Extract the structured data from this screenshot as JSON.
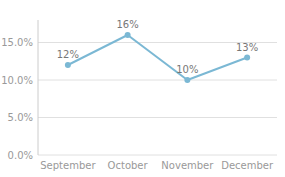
{
  "chart_data": {
    "type": "line",
    "categories": [
      "September",
      "October",
      "November",
      "December"
    ],
    "values": [
      0.12,
      0.16,
      0.1,
      0.13
    ],
    "value_labels": [
      "12%",
      "16%",
      "10%",
      "13%"
    ],
    "data_labels": true,
    "color": "#7bb8d4",
    "marker": "circle",
    "ylim": [
      0.0,
      0.18
    ],
    "yticks": [
      {
        "value": 0.0,
        "label": "0.0%"
      },
      {
        "value": 0.05,
        "label": "5.0%"
      },
      {
        "value": 0.1,
        "label": "10.0%"
      },
      {
        "value": 0.15,
        "label": "15.0%"
      }
    ],
    "grid": true
  }
}
